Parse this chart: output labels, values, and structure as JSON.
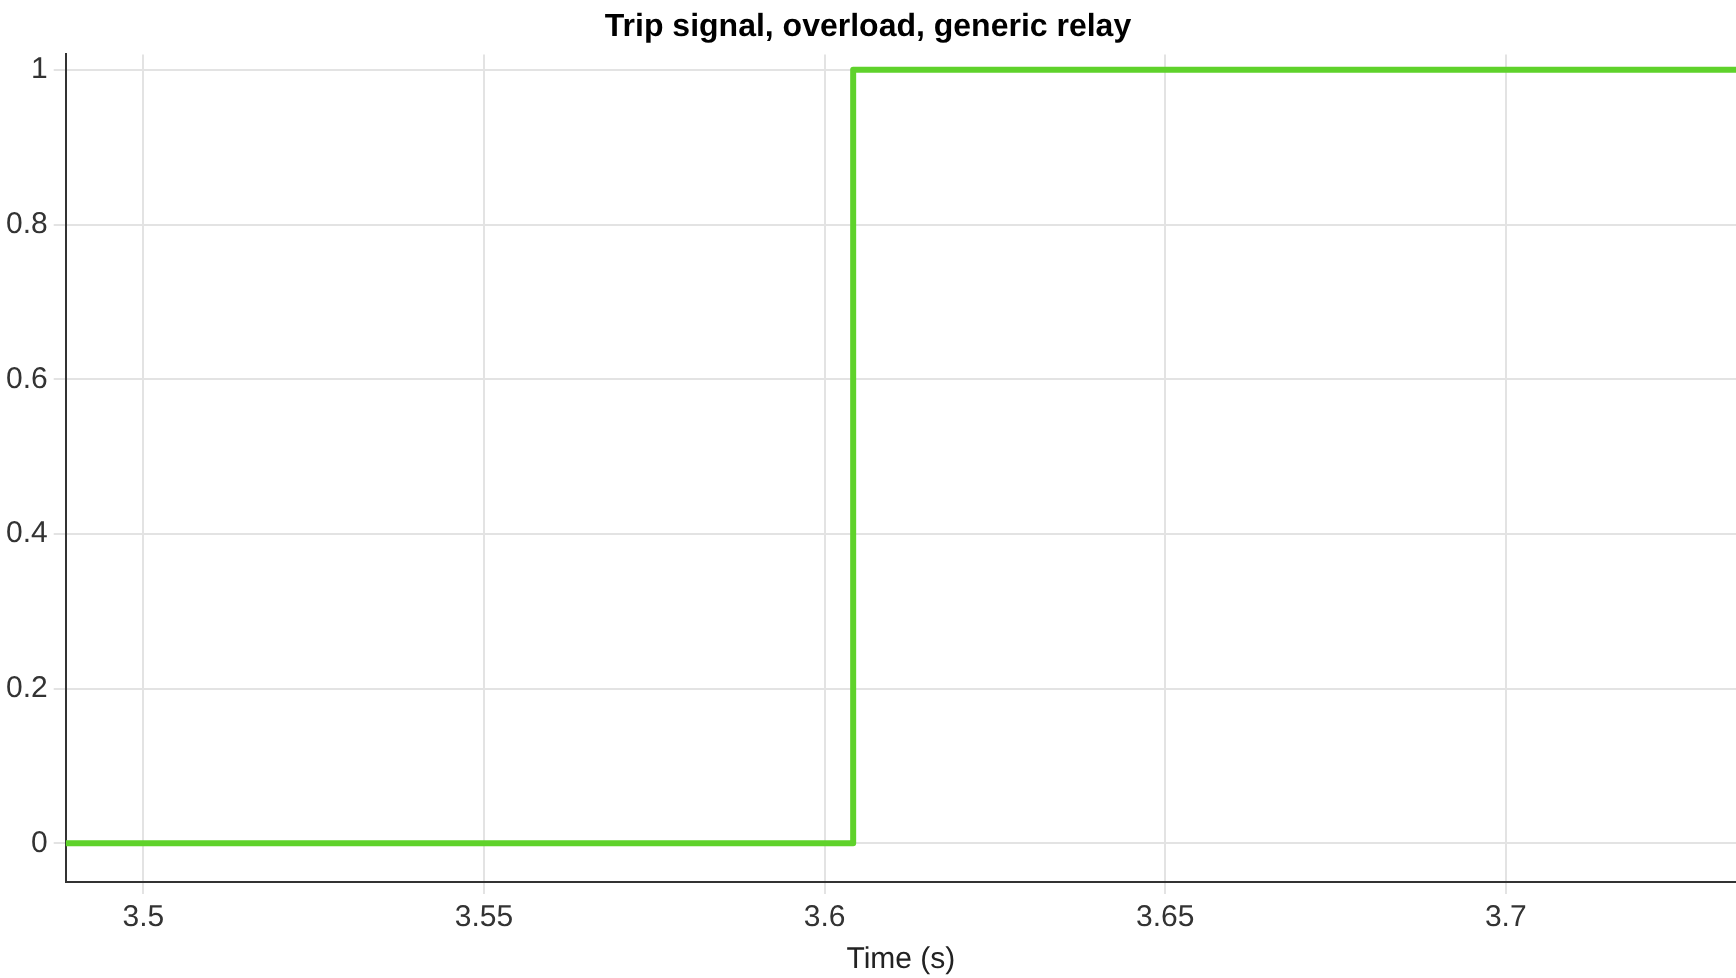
{
  "chart_data": {
    "type": "line",
    "title": "Trip signal, overload, generic relay",
    "xlabel": "Time (s)",
    "x": [
      3.4886,
      3.6042,
      3.6042,
      3.7338
    ],
    "series": [
      {
        "color": "#5fd22b",
        "values": [
          0,
          0,
          1,
          1
        ]
      }
    ],
    "xlim": [
      3.4886,
      3.7338
    ],
    "xticks": [
      3.5,
      3.55,
      3.6,
      3.65,
      3.7
    ],
    "ylim": [
      -0.05,
      1.02
    ],
    "yticks": [
      0,
      0.2,
      0.4,
      0.6,
      0.8,
      1
    ],
    "grid": true,
    "legend": false,
    "marker": "none",
    "line_style": "solid"
  }
}
